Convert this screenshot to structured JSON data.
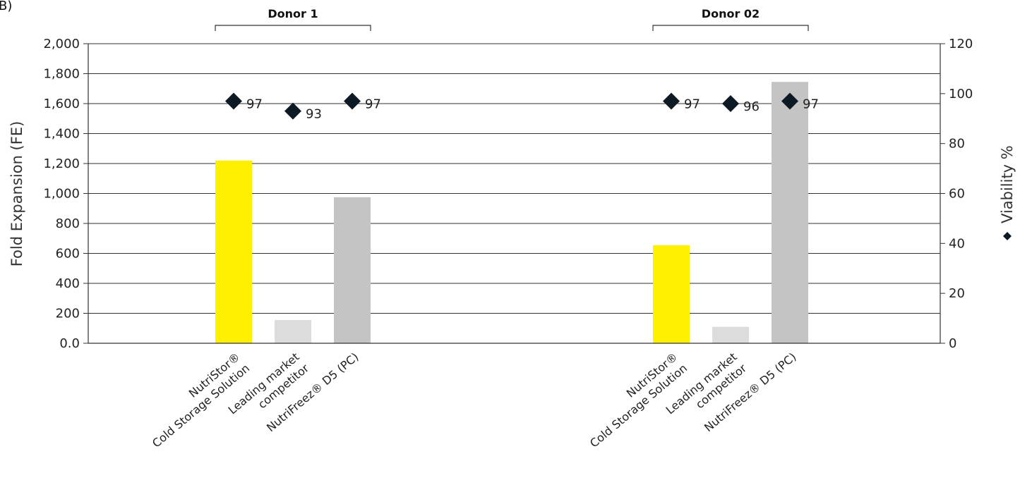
{
  "panel_label": "B)",
  "chart_data": {
    "type": "bar",
    "groups": [
      {
        "title": "Donor 1",
        "categories": [
          {
            "line1": "NutriStor®",
            "line2": "Cold Storage Solution"
          },
          {
            "line1": "Leading market",
            "line2": "competitor"
          },
          {
            "line1": "NutriFreez® D5 (PC)",
            "line2": ""
          }
        ],
        "fold_expansion": [
          1220,
          155,
          975
        ],
        "viability": [
          97,
          93,
          97
        ],
        "viability_labels": [
          "97",
          "93",
          "97"
        ]
      },
      {
        "title": "Donor 02",
        "categories": [
          {
            "line1": "NutriStor®",
            "line2": "Cold Storage Solution"
          },
          {
            "line1": "Leading market",
            "line2": "competitor"
          },
          {
            "line1": "NutriFreez® D5 (PC)",
            "line2": ""
          }
        ],
        "fold_expansion": [
          655,
          110,
          1745
        ],
        "viability": [
          97,
          96,
          97
        ],
        "viability_labels": [
          "97",
          "96",
          "97"
        ]
      }
    ],
    "ylabel_left": "Fold Expansion (FE)",
    "ylabel_right": "Viability %",
    "ylim_left": [
      0,
      2000
    ],
    "ylim_right": [
      0,
      120
    ],
    "left_ticks": [
      "0.0",
      "200",
      "400",
      "600",
      "800",
      "1,000",
      "1,200",
      "1,400",
      "1,600",
      "1,800",
      "2,000"
    ],
    "right_ticks": [
      "0",
      "20",
      "40",
      "60",
      "80",
      "100",
      "120"
    ],
    "grid": true,
    "bar_colors": [
      "#fff000",
      "#dcdcdc",
      "#c4c4c4"
    ],
    "marker_color": "#0d1a24"
  }
}
